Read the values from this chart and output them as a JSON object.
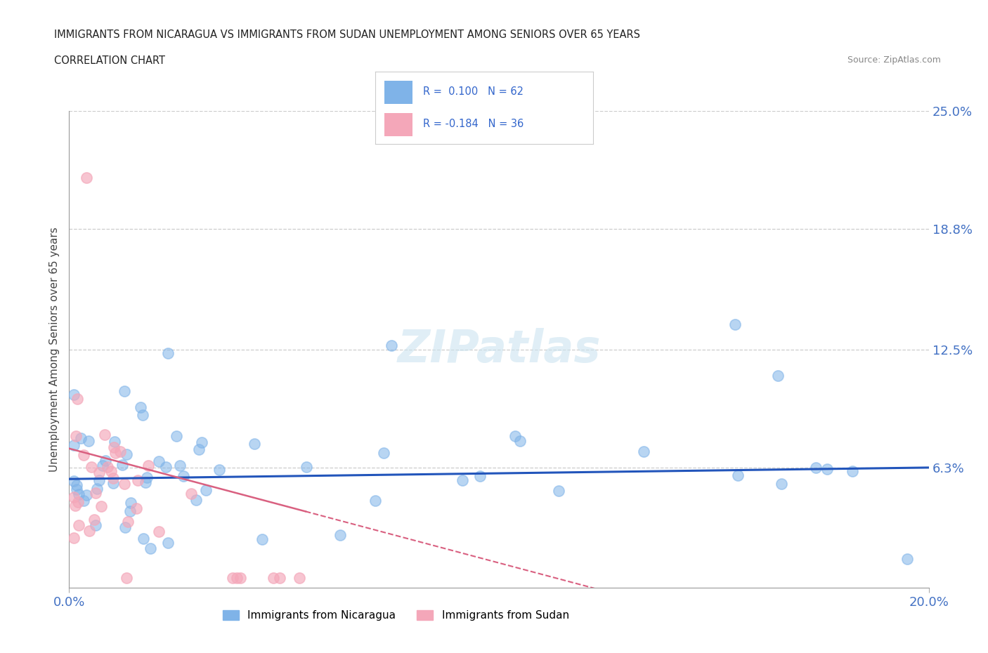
{
  "title_line1": "IMMIGRANTS FROM NICARAGUA VS IMMIGRANTS FROM SUDAN UNEMPLOYMENT AMONG SENIORS OVER 65 YEARS",
  "title_line2": "CORRELATION CHART",
  "source": "Source: ZipAtlas.com",
  "ylabel": "Unemployment Among Seniors over 65 years",
  "xlim": [
    0.0,
    0.2
  ],
  "ylim": [
    0.0,
    0.25
  ],
  "ytick_labels": [
    "25.0%",
    "18.8%",
    "12.5%",
    "6.3%"
  ],
  "ytick_values": [
    0.25,
    0.188,
    0.125,
    0.063
  ],
  "nicaragua_color": "#7fb3e8",
  "sudan_color": "#f4a7b9",
  "nicaragua_R": 0.1,
  "nicaragua_N": 62,
  "sudan_R": -0.184,
  "sudan_N": 36,
  "watermark": "ZIPatlas",
  "legend_R_color": "#3366cc"
}
